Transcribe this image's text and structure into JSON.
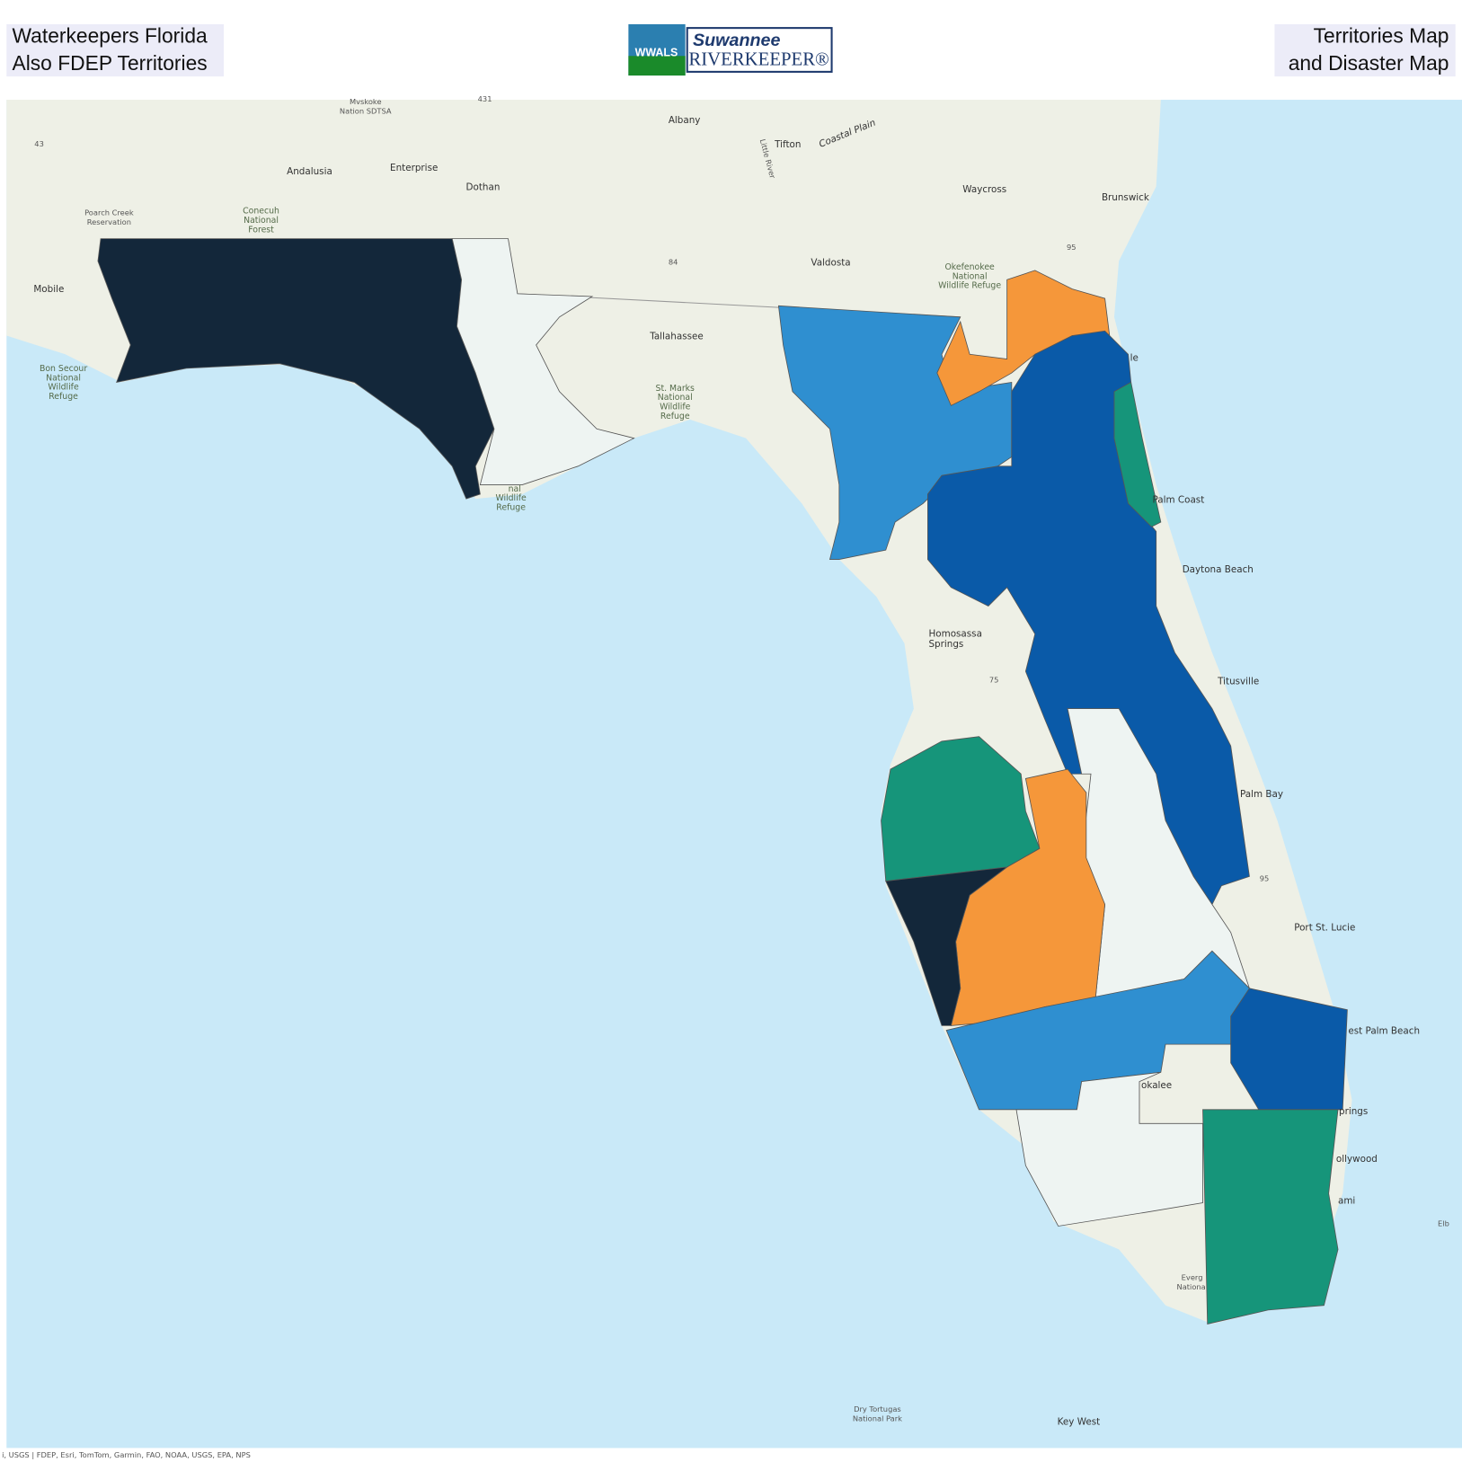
{
  "header": {
    "left": [
      "Waterkeepers Florida",
      "Also FDEP Territories"
    ],
    "right": [
      "Territories Map",
      "and Disaster Map"
    ],
    "logo": {
      "badge": "WWALS",
      "name": "Suwannee",
      "title": "RIVERKEEPER®"
    }
  },
  "map": {
    "places": [
      [
        "Mvskoke",
        "Nation SDTSA"
      ],
      [
        "Albany"
      ],
      [
        "Tifton"
      ],
      [
        "Coastal Plain"
      ],
      [
        "Little River"
      ],
      [
        "Andalusia"
      ],
      [
        "Enterprise"
      ],
      [
        "Dothan"
      ],
      [
        "Waycross"
      ],
      [
        "Brunswick"
      ],
      [
        "Poarch Creek",
        "Reservation"
      ],
      [
        "Conecuh",
        "National",
        "Forest"
      ],
      [
        "Mobile"
      ],
      [
        "Valdosta"
      ],
      [
        "Okefenokee",
        "National",
        "Wildlife Refuge"
      ],
      [
        "Bon Secour",
        "National",
        "Wildlife",
        "Refuge"
      ],
      [
        "Tallahassee"
      ],
      [
        "St. Marks",
        "National",
        "Wildlife",
        "Refuge"
      ],
      [
        "nal",
        "Wildlife",
        "Refuge"
      ],
      [
        "le"
      ],
      [
        "Palm Coast"
      ],
      [
        "Daytona Beach"
      ],
      [
        "Homosassa",
        "Springs"
      ],
      [
        "Titusville"
      ],
      [
        "Palm Bay"
      ],
      [
        "Port St. Lucie"
      ],
      [
        "est Palm Beach"
      ],
      [
        "okalee"
      ],
      [
        "prings"
      ],
      [
        "ollywood"
      ],
      [
        "ami"
      ],
      [
        "Elb"
      ],
      [
        "Everg",
        "Nationa"
      ],
      [
        "Dry Tortugas",
        "National Park"
      ],
      [
        "Key West"
      ],
      [
        "43"
      ],
      [
        "431"
      ],
      [
        "84"
      ],
      [
        "95"
      ],
      [
        "75"
      ],
      [
        "95"
      ]
    ],
    "attribution": "i, USGS | FDEP, Esri, TomTom, Garmin, FAO, NOAA, USGS, EPA, NPS"
  }
}
